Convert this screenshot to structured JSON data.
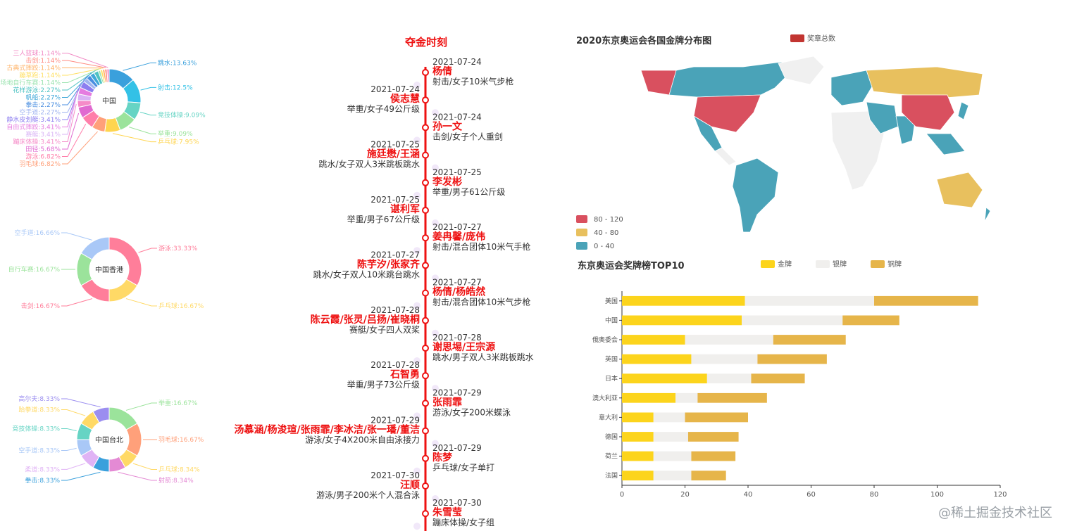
{
  "donuts": [
    {
      "center": "中国",
      "slices": [
        {
          "name": "跳水",
          "value": 13.63,
          "label": "跳水:13.63%",
          "color": "#3aa0dc"
        },
        {
          "name": "射击",
          "value": 12.5,
          "label": "射击:12.5%",
          "color": "#33c1e6"
        },
        {
          "name": "竞技体操",
          "value": 9.09,
          "label": "竞技体操:9.09%",
          "color": "#66d4c4"
        },
        {
          "name": "举重",
          "value": 9.09,
          "label": "举重:9.09%",
          "color": "#9be39b"
        },
        {
          "name": "乒乓球",
          "value": 7.95,
          "label": "乒乓球:7.95%",
          "color": "#ffd54f"
        },
        {
          "name": "羽毛球",
          "value": 6.82,
          "label": "羽毛球:6.82%",
          "color": "#ffa07a"
        },
        {
          "name": "游泳",
          "value": 6.82,
          "label": "游泳:6.82%",
          "color": "#ff7faa"
        },
        {
          "name": "田径",
          "value": 5.68,
          "label": "田径:5.68%",
          "color": "#e06ad0"
        },
        {
          "name": "蹦床体操",
          "value": 3.41,
          "label": "蹦床体操:3.41%",
          "color": "#f58bc8"
        },
        {
          "name": "赛艇",
          "value": 3.41,
          "label": "赛艇:3.41%",
          "color": "#d9b3f5"
        },
        {
          "name": "自由式摔跤",
          "value": 3.41,
          "label": "自由式摔跤:3.41%",
          "color": "#e57ce0"
        },
        {
          "name": "静水皮划艇",
          "value": 3.41,
          "label": "静水皮划艇:3.41%",
          "color": "#8c7ef0"
        },
        {
          "name": "空手道",
          "value": 2.27,
          "label": "空手道:2.27%",
          "color": "#a0b4f0"
        },
        {
          "name": "拳击",
          "value": 2.27,
          "label": "拳击:2.27%",
          "color": "#4a8ee0"
        },
        {
          "name": "帆船",
          "value": 2.27,
          "label": "帆船:2.27%",
          "color": "#3fa8d8"
        },
        {
          "name": "花样游泳",
          "value": 2.27,
          "label": "花样游泳:2.27%",
          "color": "#4fc3c3"
        },
        {
          "name": "场地自行车赛",
          "value": 1.14,
          "label": "场地自行车赛:1.14%",
          "color": "#9be3b0"
        },
        {
          "name": "蹦草跑",
          "value": 1.14,
          "label": "蹦草跑:1.14%",
          "color": "#ffe066"
        },
        {
          "name": "古典式摔跤",
          "value": 1.14,
          "label": "古典式摔跤:1.14%",
          "color": "#ffb266"
        },
        {
          "name": "击剑",
          "value": 1.14,
          "label": "击剑:1.14%",
          "color": "#ff8a80"
        },
        {
          "name": "三人篮球",
          "value": 1.14,
          "label": "三人篮球:1.14%",
          "color": "#f28cc6"
        }
      ]
    },
    {
      "center": "中国香港",
      "slices": [
        {
          "name": "游泳",
          "value": 33.33,
          "label": "游泳:33.33%",
          "color": "#ff7e9a"
        },
        {
          "name": "乒乓球",
          "value": 16.67,
          "label": "乒乓球:16.67%",
          "color": "#ffd966"
        },
        {
          "name": "击剑",
          "value": 16.67,
          "label": "击剑:16.67%",
          "color": "#ff7e9a"
        },
        {
          "name": "自行车赛",
          "value": 16.67,
          "label": "自行车赛:16.67%",
          "color": "#9be39b"
        },
        {
          "name": "空手道",
          "value": 16.66,
          "label": "空手道:16.66%",
          "color": "#a9c8f7"
        }
      ]
    },
    {
      "center": "中国台北",
      "slices": [
        {
          "name": "举重",
          "value": 16.67,
          "label": "举重:16.67%",
          "color": "#9be39b"
        },
        {
          "name": "羽毛球",
          "value": 16.67,
          "label": "羽毛球:16.67%",
          "color": "#ffa07a"
        },
        {
          "name": "乒乓球",
          "value": 8.34,
          "label": "乒乓球:8.34%",
          "color": "#ffd966"
        },
        {
          "name": "射箭",
          "value": 8.34,
          "label": "射箭:8.34%",
          "color": "#e48ad4"
        },
        {
          "name": "拳击",
          "value": 8.33,
          "label": "拳击:8.33%",
          "color": "#3aa0dc"
        },
        {
          "name": "柔道",
          "value": 8.33,
          "label": "柔道:8.33%",
          "color": "#e0b3f5"
        },
        {
          "name": "空手道",
          "value": 8.33,
          "label": "空手道:8.33%",
          "color": "#a9c8f7"
        },
        {
          "name": "竞技体操",
          "value": 8.33,
          "label": "竞技体操:8.33%",
          "color": "#66d4c4"
        },
        {
          "name": "跆拳道",
          "value": 8.33,
          "label": "跆拳道:8.33%",
          "color": "#ffd966"
        },
        {
          "name": "高尔夫",
          "value": 8.33,
          "label": "高尔夫:8.33%",
          "color": "#9b8ef0"
        }
      ]
    }
  ],
  "timeline": {
    "title": "夺金时刻",
    "events": [
      {
        "date": "2021-07-24",
        "athlete": "杨倩",
        "event": "射击/女子10米气步枪"
      },
      {
        "date": "2021-07-24",
        "athlete": "侯志慧",
        "event": "举重/女子49公斤级"
      },
      {
        "date": "2021-07-24",
        "athlete": "孙一文",
        "event": "击剑/女子个人重剑"
      },
      {
        "date": "2021-07-25",
        "athlete": "施廷懋/王涵",
        "event": "跳水/女子双人3米跳板跳水"
      },
      {
        "date": "2021-07-25",
        "athlete": "李发彬",
        "event": "举重/男子61公斤级"
      },
      {
        "date": "2021-07-25",
        "athlete": "谌利军",
        "event": "举重/男子67公斤级"
      },
      {
        "date": "2021-07-27",
        "athlete": "姜冉馨/庞伟",
        "event": "射击/混合团体10米气手枪"
      },
      {
        "date": "2021-07-27",
        "athlete": "陈芋汐/张家齐",
        "event": "跳水/女子双人10米跳台跳水"
      },
      {
        "date": "2021-07-27",
        "athlete": "杨倩/杨皓然",
        "event": "射击/混合团体10米气步枪"
      },
      {
        "date": "2021-07-28",
        "athlete": "陈云霞/张灵/吕扬/崔晓桐",
        "event": "赛艇/女子四人双桨"
      },
      {
        "date": "2021-07-28",
        "athlete": "谢思埸/王宗源",
        "event": "跳水/男子双人3米跳板跳水"
      },
      {
        "date": "2021-07-28",
        "athlete": "石智勇",
        "event": "举重/男子73公斤级"
      },
      {
        "date": "2021-07-29",
        "athlete": "张雨霏",
        "event": "游泳/女子200米蝶泳"
      },
      {
        "date": "2021-07-29",
        "athlete": "汤慕涵/杨浚瑄/张雨霏/李冰洁/张一璠/董洁",
        "event": "游泳/女子4X200米自由泳接力"
      },
      {
        "date": "2021-07-29",
        "athlete": "陈梦",
        "event": "乒乓球/女子单打"
      },
      {
        "date": "2021-07-30",
        "athlete": "汪顺",
        "event": "游泳/男子200米个人混合泳"
      },
      {
        "date": "2021-07-30",
        "athlete": "朱雪莹",
        "event": "蹦床体操/女子组"
      }
    ]
  },
  "map": {
    "title": "2020东京奥运会各国金牌分布图",
    "legend": "奖章总数",
    "ranges": [
      {
        "label": "80 - 120",
        "color": "#d9505f"
      },
      {
        "label": "40 - 80",
        "color": "#e8c05e"
      },
      {
        "label": "0 - 40",
        "color": "#4aa3b8"
      }
    ],
    "no_data_color": "#f0f0f0",
    "highlighted": [
      {
        "region": "美国",
        "range": "80 - 120"
      },
      {
        "region": "中国",
        "range": "80 - 120"
      },
      {
        "region": "俄罗斯",
        "range": "40 - 80"
      },
      {
        "region": "澳大利亚",
        "range": "40 - 80"
      },
      {
        "region": "巴西",
        "range": "0 - 40"
      }
    ]
  },
  "chart_data": {
    "type": "bar",
    "orientation": "horizontal",
    "stacked": true,
    "title": "东京奥运会奖牌榜TOP10",
    "categories": [
      "美国",
      "中国",
      "俄奥委会",
      "英国",
      "日本",
      "澳大利亚",
      "意大利",
      "德国",
      "荷兰",
      "法国"
    ],
    "series": [
      {
        "name": "金牌",
        "color": "#fcd41c",
        "values": [
          39,
          38,
          20,
          22,
          27,
          17,
          10,
          10,
          10,
          10
        ]
      },
      {
        "name": "银牌",
        "color": "#f0efed",
        "values": [
          41,
          32,
          28,
          21,
          14,
          7,
          10,
          11,
          12,
          12
        ]
      },
      {
        "name": "铜牌",
        "color": "#e6b54a",
        "values": [
          33,
          18,
          23,
          22,
          17,
          22,
          20,
          16,
          14,
          11
        ]
      }
    ],
    "xlim": [
      0,
      120
    ],
    "xticks": [
      0,
      20,
      40,
      60,
      80,
      100,
      120
    ],
    "legend_position": "top"
  },
  "watermark": "@稀土掘金技术社区"
}
